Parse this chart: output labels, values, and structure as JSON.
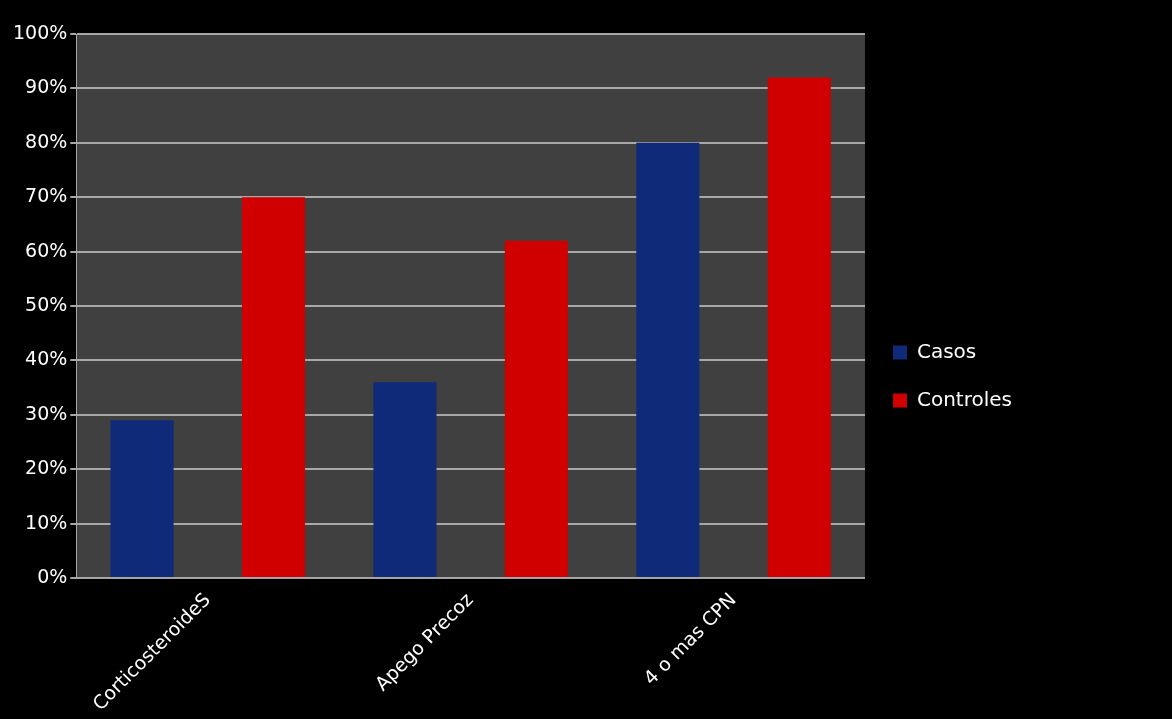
{
  "chart_data": {
    "type": "bar",
    "categories": [
      "CorticosteroideS",
      "Apego Precoz",
      "4 o mas CPN"
    ],
    "series": [
      {
        "name": "Casos",
        "color": "#0f2a78",
        "values": [
          29,
          36,
          80
        ]
      },
      {
        "name": "Controles",
        "color": "#d00000",
        "values": [
          70,
          62,
          92
        ]
      }
    ],
    "ylim": [
      0,
      100
    ],
    "yticks": [
      {
        "value": 0,
        "label": "0%"
      },
      {
        "value": 10,
        "label": "10%"
      },
      {
        "value": 20,
        "label": "20%"
      },
      {
        "value": 30,
        "label": "30%"
      },
      {
        "value": 40,
        "label": "40%"
      },
      {
        "value": 50,
        "label": "50%"
      },
      {
        "value": 60,
        "label": "60%"
      },
      {
        "value": 70,
        "label": "70%"
      },
      {
        "value": 80,
        "label": "80%"
      },
      {
        "value": 90,
        "label": "90%"
      },
      {
        "value": 100,
        "label": "100%"
      }
    ],
    "grid": "y",
    "legend": "right"
  }
}
